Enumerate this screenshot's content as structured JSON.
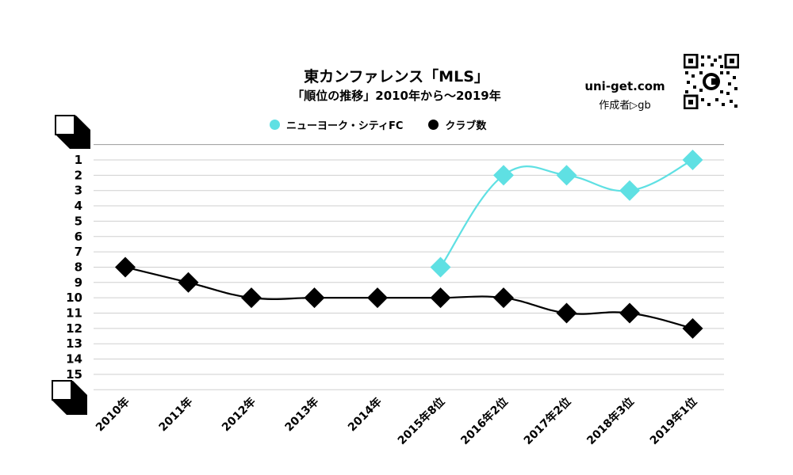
{
  "header": {
    "title": "東カンファレンス「MLS」",
    "subtitle": "「順位の推移」2010年から～2019年"
  },
  "branding": {
    "site": "uni-get.com",
    "author": "作成者▷gb",
    "qr_icon": "qr-code-icon"
  },
  "colors": {
    "nycfc": "#5fe0e3",
    "clubs": "#000000",
    "grid": "#cccccc"
  },
  "chart_data": {
    "type": "line",
    "title": "東カンファレンス「MLS」",
    "subtitle": "「順位の推移」2010年から～2019年",
    "categories": [
      "2010年",
      "2011年",
      "2012年",
      "2013年",
      "2014年",
      "2015年8位",
      "2016年2位",
      "2017年2位",
      "2018年3位",
      "2019年1位"
    ],
    "y_ticks": [
      "1",
      "2",
      "3",
      "4",
      "5",
      "6",
      "7",
      "8",
      "9",
      "10",
      "11",
      "12",
      "13",
      "14",
      "15"
    ],
    "ylim": [
      1,
      15
    ],
    "y_inverted": true,
    "grid": true,
    "legend_position": "top-center",
    "marker": "diamond",
    "series": [
      {
        "name": "ニューヨーク・シティFC",
        "values": [
          null,
          null,
          null,
          null,
          null,
          8,
          2,
          2,
          3,
          1
        ]
      },
      {
        "name": "クラブ数",
        "values": [
          8,
          9,
          10,
          10,
          10,
          10,
          10,
          11,
          11,
          12
        ]
      }
    ]
  }
}
